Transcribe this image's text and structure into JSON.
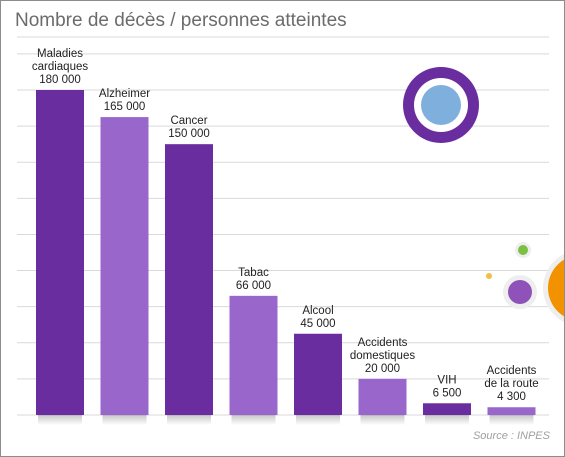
{
  "title": "Nombre de décès / personnes atteintes",
  "source": "Source : INPES",
  "colors": {
    "dark": "#6a2d9f",
    "light": "#9966cc",
    "grid": "#d9d9d9",
    "text": "#222222"
  },
  "chart_data": {
    "type": "bar",
    "title": "Nombre de décès / personnes atteintes",
    "xlabel": "",
    "ylabel": "",
    "ylim": [
      0,
      180000
    ],
    "grid": true,
    "categories": [
      [
        "Maladies",
        "cardiaques"
      ],
      [
        "Alzheimer"
      ],
      [
        "Cancer"
      ],
      [
        "Tabac"
      ],
      [
        "Alcool"
      ],
      [
        "Accidents",
        "domestiques"
      ],
      [
        "VIH"
      ],
      [
        "Accidents",
        "de la route"
      ]
    ],
    "values": [
      180000,
      165000,
      150000,
      66000,
      45000,
      20000,
      6500,
      4300
    ],
    "value_labels": [
      "180 000",
      "165 000",
      "150 000",
      "66 000",
      "45 000",
      "20 000",
      "6 500",
      "4 300"
    ]
  }
}
